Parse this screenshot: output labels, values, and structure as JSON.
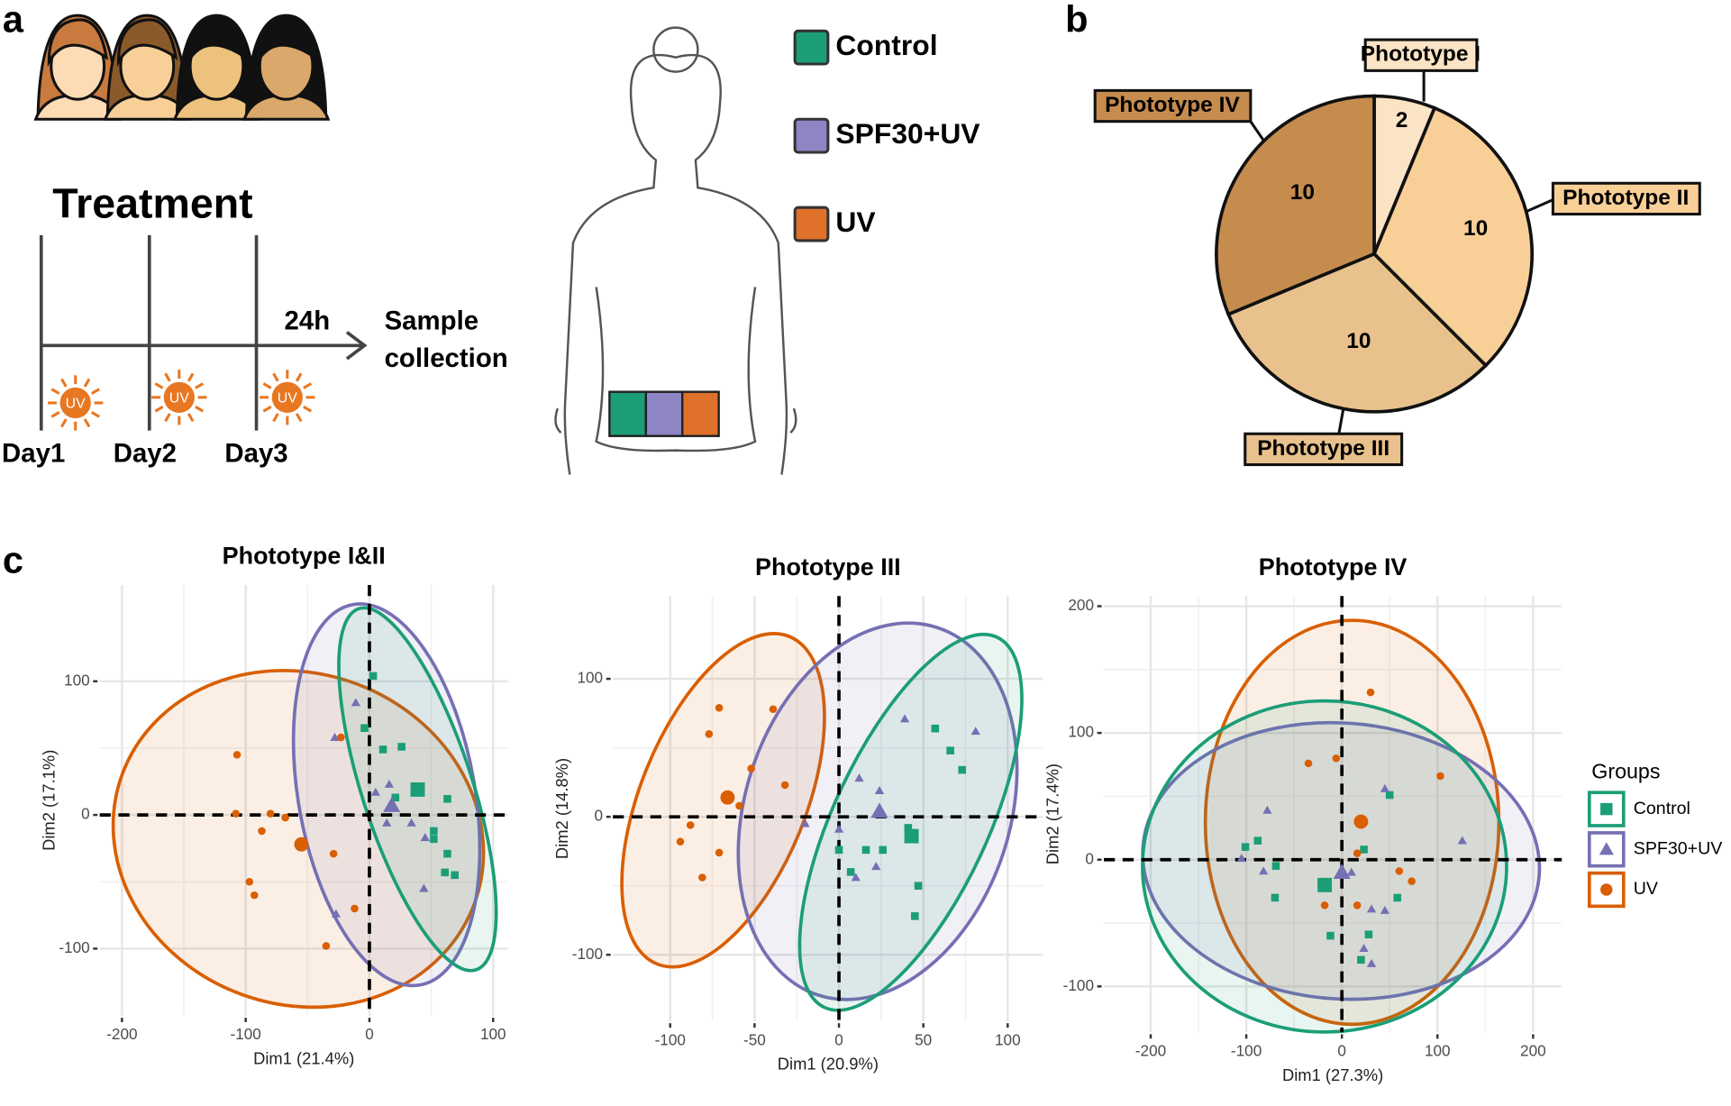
{
  "panel_labels": [
    "a",
    "b",
    "c"
  ],
  "panel_a": {
    "title": "Treatment",
    "days": [
      "Day1",
      "Day2",
      "Day3"
    ],
    "uv_icon": "UV",
    "interval": "24h",
    "endpoint": [
      "Sample",
      "collection"
    ],
    "groups": [
      {
        "name": "Control",
        "color": "#1b9e77"
      },
      {
        "name": "SPF30+UV",
        "color": "#8d85c4"
      },
      {
        "name": "UV",
        "color": "#e0712a"
      }
    ]
  },
  "chart_data": [
    {
      "type": "pie",
      "categories": [
        "Phototype I",
        "Phototype II",
        "Phototype III",
        "Phototype IV"
      ],
      "values": [
        2,
        10,
        10,
        10
      ],
      "colors": [
        "#fbe3c5",
        "#f9cf98",
        "#e8c18c",
        "#c68c4e"
      ]
    },
    {
      "type": "scatter",
      "title": "Phototype I&II",
      "xlabel": "Dim1 (21.4%)",
      "ylabel": "Dim2 (17.1%)",
      "xlim": [
        -218,
        112
      ],
      "ylim": [
        -150,
        172
      ],
      "xticks": [
        -200,
        -100,
        0,
        100
      ],
      "yticks": [
        -100,
        0,
        100
      ],
      "grid": true,
      "series": [
        {
          "name": "Control",
          "color": "#1b9e77",
          "marker": "square",
          "x": [
            3,
            -4,
            11,
            26,
            21,
            63,
            52,
            63,
            69,
            61,
            52
          ],
          "y": [
            104,
            65,
            49,
            51,
            13,
            12,
            -12,
            -29,
            -45,
            -43,
            -18
          ],
          "centroid": [
            39,
            19
          ]
        },
        {
          "name": "SPF30+UV",
          "color": "#7570b3",
          "marker": "triangle",
          "x": [
            -11,
            -28,
            16,
            14,
            34,
            45,
            44,
            -27,
            5
          ],
          "y": [
            84,
            58,
            23,
            -6,
            -6,
            -17,
            -55,
            -74,
            17
          ],
          "centroid": [
            18,
            7
          ]
        },
        {
          "name": "UV",
          "color": "#d95f02",
          "marker": "circle",
          "x": [
            -107,
            -108,
            -80,
            -87,
            -68,
            -29,
            -97,
            -93,
            -12,
            -35,
            -23
          ],
          "y": [
            45,
            1,
            1,
            -12,
            -2,
            -29,
            -50,
            -60,
            -70,
            -98,
            58
          ],
          "centroid": [
            -55,
            -22
          ]
        }
      ]
    },
    {
      "type": "scatter",
      "title": "Phototype III",
      "xlabel": "Dim1 (20.9%)",
      "ylabel": "Dim2 (14.8%)",
      "xlim": [
        -134,
        121
      ],
      "ylim": [
        -148,
        160
      ],
      "xticks": [
        -100,
        -50,
        0,
        50,
        100
      ],
      "yticks": [
        -100,
        0,
        100
      ],
      "grid": true,
      "series": [
        {
          "name": "Control",
          "color": "#1b9e77",
          "marker": "square",
          "x": [
            57,
            66,
            73,
            41,
            26,
            16,
            47,
            45,
            0,
            7
          ],
          "y": [
            64,
            48,
            34,
            -8,
            -24,
            -24,
            -50,
            -72,
            -24,
            -40
          ],
          "centroid": [
            43,
            -14
          ]
        },
        {
          "name": "SPF30+UV",
          "color": "#7570b3",
          "marker": "triangle",
          "x": [
            39,
            81,
            12,
            24,
            -20,
            0,
            10,
            22
          ],
          "y": [
            71,
            62,
            28,
            19,
            -5,
            -9,
            -44,
            -36
          ],
          "centroid": [
            24,
            4
          ]
        },
        {
          "name": "UV",
          "color": "#d95f02",
          "marker": "circle",
          "x": [
            -71,
            -39,
            -77,
            -52,
            -32,
            -59,
            -88,
            -94,
            -71,
            -81
          ],
          "y": [
            79,
            78,
            60,
            35,
            23,
            8,
            -6,
            -18,
            -26,
            -44
          ],
          "centroid": [
            -66,
            14
          ]
        }
      ]
    },
    {
      "type": "scatter",
      "title": "Phototype IV",
      "xlabel": "Dim1 (27.3%)",
      "ylabel": "Dim2 (17.4%)",
      "xlim": [
        -249,
        230
      ],
      "ylim": [
        -136,
        208
      ],
      "xticks": [
        -200,
        -100,
        0,
        100,
        200
      ],
      "yticks": [
        -100,
        0,
        100,
        200
      ],
      "grid": true,
      "legend": true,
      "legend_title": "Groups",
      "series": [
        {
          "name": "Control",
          "color": "#1b9e77",
          "marker": "square",
          "x": [
            50,
            -88,
            -101,
            -69,
            -70,
            23,
            58,
            -12,
            28,
            20
          ],
          "y": [
            51,
            15,
            10,
            -5,
            -30,
            8,
            -30,
            -60,
            -59,
            -79
          ],
          "centroid": [
            -18,
            -20
          ]
        },
        {
          "name": "SPF30+UV",
          "color": "#7570b3",
          "marker": "triangle",
          "x": [
            45,
            -78,
            -105,
            -82,
            31,
            45,
            23,
            31,
            126,
            10
          ],
          "y": [
            56,
            39,
            1,
            -9,
            -39,
            -40,
            -70,
            -82,
            15,
            -10
          ],
          "centroid": [
            0,
            -10
          ]
        },
        {
          "name": "UV",
          "color": "#d95f02",
          "marker": "circle",
          "x": [
            30,
            103,
            -6,
            -35,
            16,
            73,
            60,
            -18,
            16
          ],
          "y": [
            132,
            66,
            80,
            76,
            5,
            -17,
            -9,
            -36,
            -36
          ],
          "centroid": [
            20,
            30
          ]
        }
      ]
    }
  ]
}
